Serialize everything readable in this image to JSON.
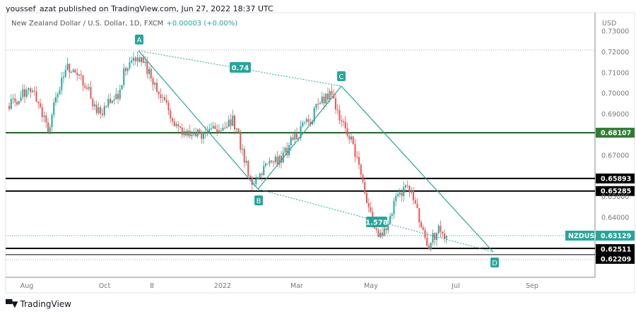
{
  "header": {
    "published": "youssef_azat published on TradingView.com, Jun 27, 2022 18:37 UTC"
  },
  "symbol": {
    "title": "New Zealand Dollar / U.S. Dollar, 1D, FXCM",
    "change": "+0.00003 (+0.00%)"
  },
  "footer": {
    "brand": "TradingView",
    "logo_mark": "TV"
  },
  "colors": {
    "up": "#26a69a",
    "down": "#ef5350",
    "pattern": "#26a69a",
    "support_green": "#1b5e20",
    "level_black": "#000000"
  },
  "chart_data": {
    "type": "candlestick",
    "title": "New Zealand Dollar / U.S. Dollar, 1D, FXCM",
    "currency_label": "USD",
    "ylim": [
      0.6175,
      0.7325
    ],
    "y_ticks": [
      "0.73000",
      "0.72000",
      "0.71000",
      "0.70000",
      "0.69000",
      "0.67000",
      "0.65000",
      "0.64000"
    ],
    "x_ticks": [
      "Aug",
      "Oct",
      "8",
      "2022",
      "Mar",
      "May",
      "Jul",
      "Sep"
    ],
    "approx_weekly_closes": [
      0.694,
      0.697,
      0.703,
      0.696,
      0.682,
      0.7,
      0.713,
      0.71,
      0.704,
      0.69,
      0.694,
      0.697,
      0.713,
      0.718,
      0.713,
      0.704,
      0.697,
      0.685,
      0.682,
      0.679,
      0.681,
      0.683,
      0.684,
      0.688,
      0.672,
      0.656,
      0.663,
      0.666,
      0.668,
      0.676,
      0.682,
      0.688,
      0.695,
      0.701,
      0.69,
      0.68,
      0.663,
      0.645,
      0.628,
      0.638,
      0.65,
      0.657,
      0.642,
      0.624,
      0.634,
      0.6313
    ],
    "levels": [
      {
        "label": "0.68107",
        "value": 0.68107,
        "style": "green"
      },
      {
        "label": "0.65893",
        "value": 0.65893,
        "style": "black"
      },
      {
        "label": "0.65285",
        "value": 0.65285,
        "style": "black"
      },
      {
        "label": "0.62511",
        "value": 0.62511,
        "style": "black"
      },
      {
        "label": "0.62209",
        "value": 0.62209,
        "style": "black"
      }
    ],
    "last_price": {
      "symbol": "NZDUSD",
      "label": "0.63129",
      "value": 0.63129
    },
    "pattern": {
      "points": [
        {
          "label": "A",
          "price": 0.721
        },
        {
          "label": "B",
          "price": 0.654
        },
        {
          "label": "C",
          "price": 0.704
        },
        {
          "label": "D",
          "price": 0.624
        }
      ],
      "ratios": [
        {
          "label": "0.74",
          "between": "A-C"
        },
        {
          "label": "1.578",
          "between": "B-D"
        }
      ]
    }
  }
}
